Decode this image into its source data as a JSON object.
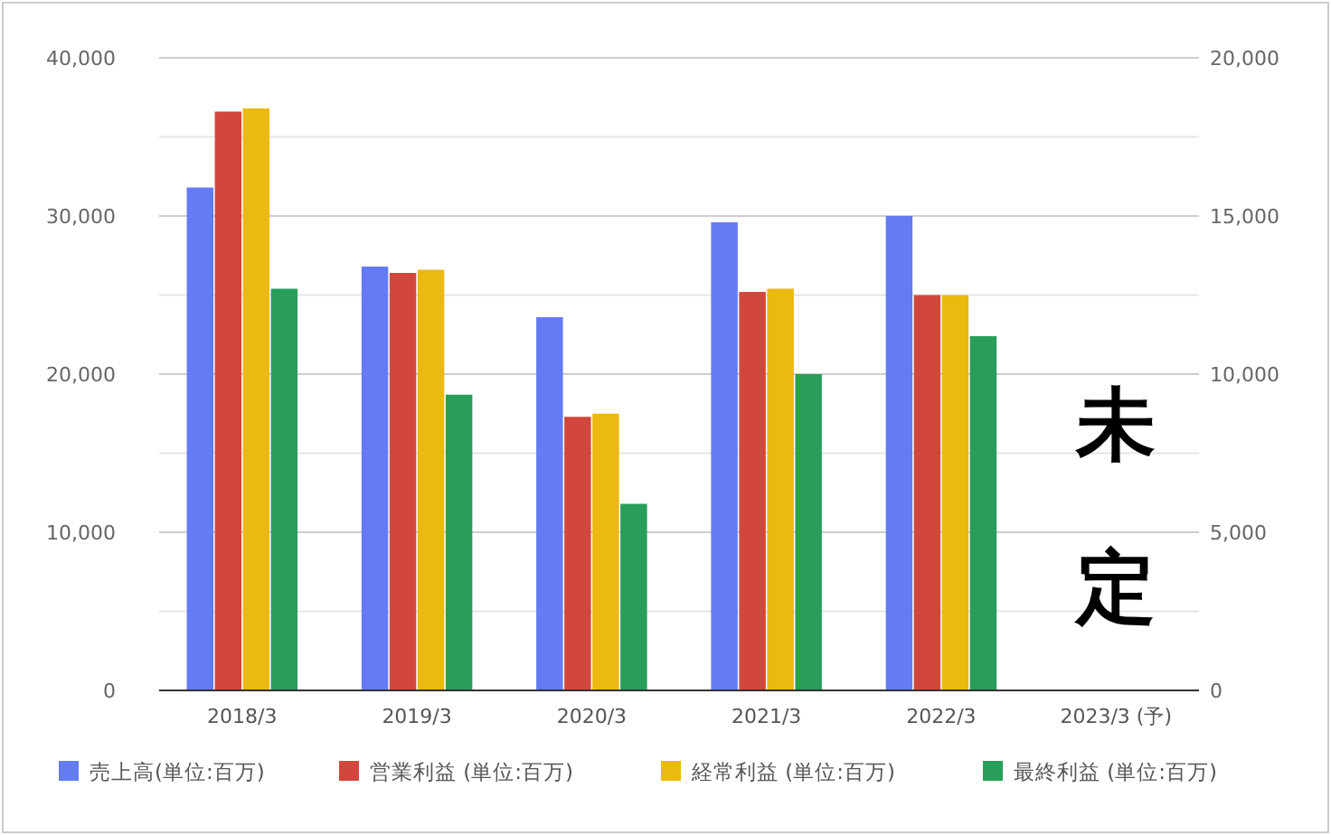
{
  "chart_data": {
    "type": "bar",
    "categories": [
      "2018/3",
      "2019/3",
      "2020/3",
      "2021/3",
      "2022/3",
      "2023/3 (予)"
    ],
    "series": [
      {
        "name": "売上高(単位:百万)",
        "color": "#637bf3",
        "values": [
          31800,
          26800,
          23600,
          29600,
          30000,
          null
        ]
      },
      {
        "name": "営業利益 (単位:百万)",
        "color": "#d2473d",
        "axis": "y2",
        "values": [
          18300,
          13200,
          8650,
          12600,
          12500,
          null
        ]
      },
      {
        "name": "経常利益 (単位:百万)",
        "color": "#ebb90f",
        "axis": "y2",
        "values": [
          18400,
          13300,
          8750,
          12700,
          12500,
          null
        ]
      },
      {
        "name": "最終利益 (単位:百万)",
        "color": "#289e5a",
        "axis": "y2",
        "values": [
          12700,
          9350,
          5900,
          10000,
          11200,
          null
        ]
      }
    ],
    "ylim": [
      0,
      40000
    ],
    "yticks": [
      0,
      {
        "value": 5000,
        "label": null
      },
      {
        "value": 10000,
        "label": "10,000"
      },
      {
        "value": 15000,
        "label": null
      },
      {
        "value": 20000,
        "label": "20,000"
      },
      {
        "value": 25000,
        "label": null
      },
      {
        "value": 30000,
        "label": "30,000"
      },
      {
        "value": 35000,
        "label": null
      },
      {
        "value": 40000,
        "label": "40,000"
      }
    ],
    "y2lim": [
      0,
      20000
    ],
    "y2ticks": [
      0,
      {
        "value": 5000,
        "label": "5,000"
      },
      {
        "value": 10000,
        "label": "10,000"
      },
      {
        "value": 15000,
        "label": "15,000"
      },
      {
        "value": 20000,
        "label": "20,000"
      }
    ],
    "grid": true,
    "legend": "bottom",
    "annotations": [
      "未定"
    ]
  }
}
